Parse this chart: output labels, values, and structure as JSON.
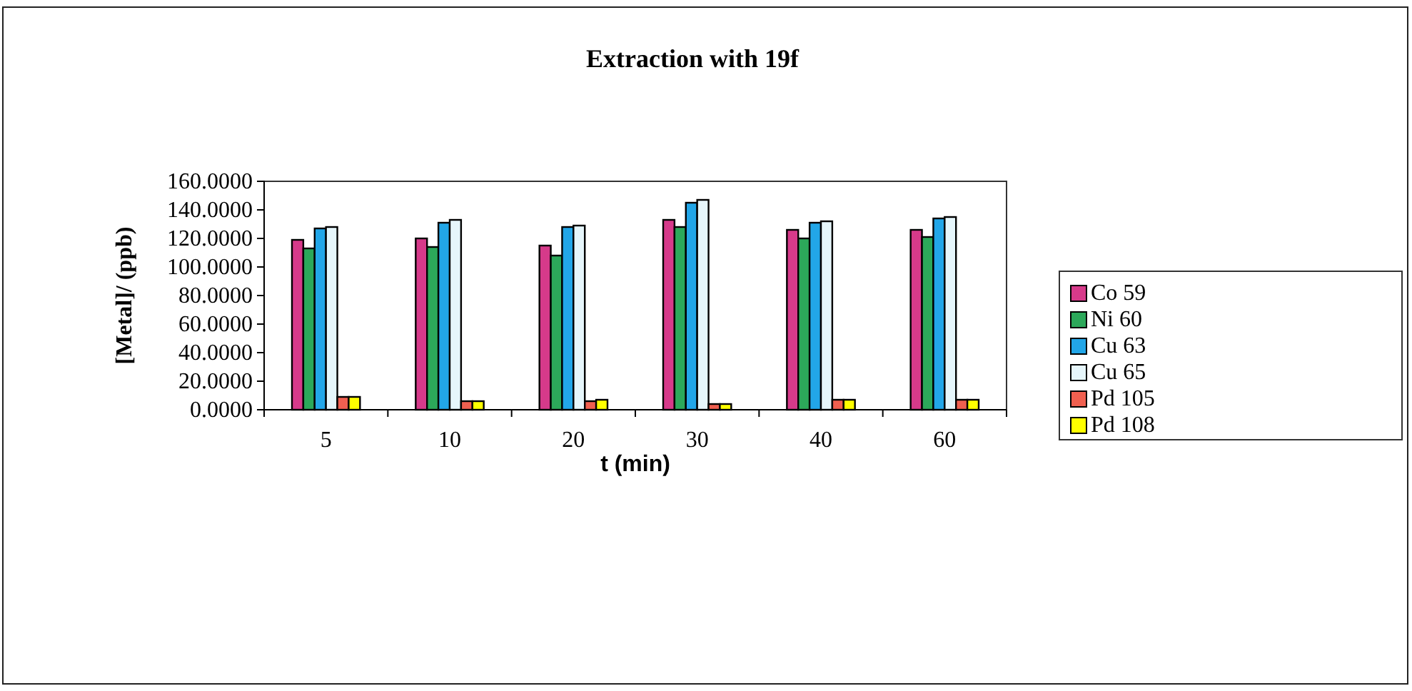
{
  "chart_data": {
    "type": "bar",
    "title": "Extraction with 19f",
    "xlabel": "t (min)",
    "ylabel": "[Metal]/ (ppb)",
    "categories": [
      "5",
      "10",
      "20",
      "30",
      "40",
      "60"
    ],
    "series": [
      {
        "name": "Co 59",
        "color": "#d63a8a",
        "values": [
          119,
          120,
          115,
          133,
          126,
          126
        ]
      },
      {
        "name": "Ni 60",
        "color": "#2ca85a",
        "values": [
          113,
          114,
          108,
          128,
          120,
          121
        ]
      },
      {
        "name": "Cu 63",
        "color": "#22a6e8",
        "values": [
          127,
          131,
          128,
          145,
          131,
          134
        ]
      },
      {
        "name": "Cu 65",
        "color": "#e6f6fb",
        "values": [
          128,
          133,
          129,
          147,
          132,
          135
        ]
      },
      {
        "name": "Pd 105",
        "color": "#f06050",
        "values": [
          9,
          6,
          6,
          4,
          7,
          7
        ]
      },
      {
        "name": "Pd 108",
        "color": "#ffff00",
        "values": [
          9,
          6,
          7,
          4,
          7,
          7
        ]
      }
    ],
    "ylim": [
      0,
      160
    ],
    "yticks": [
      {
        "value": 0,
        "label": "0.0000"
      },
      {
        "value": 20,
        "label": "20.0000"
      },
      {
        "value": 40,
        "label": "40.0000"
      },
      {
        "value": 60,
        "label": "60.0000"
      },
      {
        "value": 80,
        "label": "80.0000"
      },
      {
        "value": 100,
        "label": "100.0000"
      },
      {
        "value": 120,
        "label": "120.0000"
      },
      {
        "value": 140,
        "label": "140.0000"
      },
      {
        "value": 160,
        "label": "160.0000"
      }
    ],
    "grid": false,
    "legend": "right"
  }
}
